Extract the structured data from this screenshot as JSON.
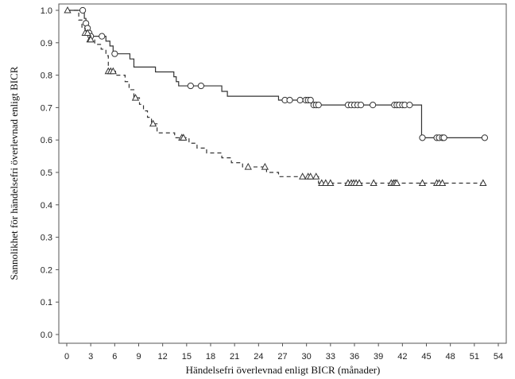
{
  "chart_data": {
    "type": "line",
    "title": "",
    "xlabel": "Händelsefri överlevnad enligt BICR (månader)",
    "ylabel": "Sannolikhet för händelsefri överlevnad enligt BICR",
    "xlim": [
      0,
      54
    ],
    "ylim": [
      0,
      1
    ],
    "xticks": [
      "0",
      "3",
      "6",
      "9",
      "12",
      "15",
      "18",
      "21",
      "24",
      "27",
      "30",
      "33",
      "36",
      "39",
      "42",
      "45",
      "48",
      "51",
      "54"
    ],
    "yticks": [
      "0.0",
      "0.1",
      "0.2",
      "0.3",
      "0.4",
      "0.5",
      "0.6",
      "0.7",
      "0.8",
      "0.9",
      "1.0"
    ],
    "grid": false,
    "series": [
      {
        "name": "solid",
        "style": "solid",
        "marker": "circle",
        "steps": [
          [
            0,
            1.0
          ],
          [
            2.2,
            0.975
          ],
          [
            2.4,
            0.96
          ],
          [
            2.6,
            0.945
          ],
          [
            2.8,
            0.93
          ],
          [
            3.0,
            0.92
          ],
          [
            4.9,
            0.905
          ],
          [
            5.4,
            0.89
          ],
          [
            5.8,
            0.866
          ],
          [
            7.9,
            0.85
          ],
          [
            8.4,
            0.825
          ],
          [
            11.1,
            0.81
          ],
          [
            13.4,
            0.795
          ],
          [
            13.7,
            0.78
          ],
          [
            14.0,
            0.767
          ],
          [
            19.4,
            0.75
          ],
          [
            20.1,
            0.735
          ],
          [
            26.5,
            0.723
          ],
          [
            30.7,
            0.708
          ],
          [
            44.4,
            0.607
          ]
        ],
        "end": 52.3,
        "censored": [
          2.0,
          2.4,
          2.6,
          2.8,
          3.0,
          4.4,
          6.0,
          15.5,
          16.8,
          27.3,
          27.9,
          29.2,
          29.9,
          30.2,
          30.5,
          30.9,
          31.2,
          31.5,
          35.2,
          35.6,
          36.0,
          36.4,
          36.8,
          38.3,
          41.0,
          41.3,
          41.6,
          42.0,
          42.3,
          42.9,
          44.5,
          46.3,
          46.6,
          47.0,
          47.2,
          52.3
        ]
      },
      {
        "name": "dashed",
        "style": "dashed",
        "marker": "triangle",
        "steps": [
          [
            0,
            1.0
          ],
          [
            1.5,
            0.97
          ],
          [
            1.9,
            0.945
          ],
          [
            2.3,
            0.93
          ],
          [
            2.8,
            0.91
          ],
          [
            3.5,
            0.895
          ],
          [
            4.3,
            0.88
          ],
          [
            4.9,
            0.86
          ],
          [
            5.2,
            0.812
          ],
          [
            6.1,
            0.8
          ],
          [
            7.3,
            0.78
          ],
          [
            7.8,
            0.755
          ],
          [
            8.4,
            0.73
          ],
          [
            9.1,
            0.71
          ],
          [
            9.6,
            0.69
          ],
          [
            10.1,
            0.67
          ],
          [
            10.6,
            0.65
          ],
          [
            11.3,
            0.622
          ],
          [
            13.5,
            0.607
          ],
          [
            15.3,
            0.59
          ],
          [
            16.3,
            0.575
          ],
          [
            17.5,
            0.56
          ],
          [
            19.4,
            0.545
          ],
          [
            20.6,
            0.53
          ],
          [
            22.0,
            0.517
          ],
          [
            25.0,
            0.5
          ],
          [
            26.5,
            0.487
          ],
          [
            31.5,
            0.467
          ]
        ],
        "end": 52.1,
        "censored": [
          0.1,
          2.3,
          2.6,
          2.9,
          3.0,
          5.2,
          5.5,
          5.8,
          8.6,
          10.8,
          14.4,
          14.6,
          22.7,
          24.8,
          29.5,
          30.2,
          30.5,
          31.2,
          31.9,
          32.4,
          33.0,
          35.2,
          35.6,
          35.9,
          36.2,
          36.6,
          38.4,
          40.6,
          40.9,
          41.1,
          41.3,
          44.5,
          46.3,
          46.6,
          47.0,
          52.1
        ]
      }
    ]
  }
}
